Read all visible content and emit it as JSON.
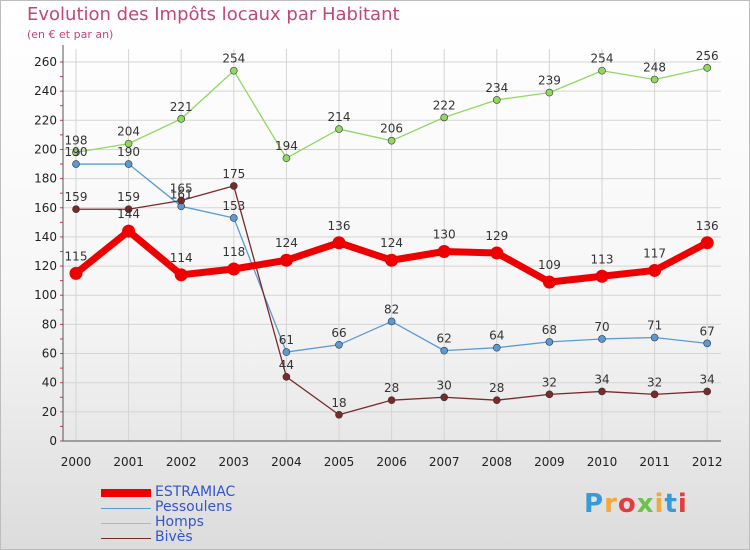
{
  "title": "Evolution des Impôts locaux par Habitant",
  "subtitle": "(en € et par an)",
  "logo": "Proxiti",
  "chart_data": {
    "type": "line",
    "x": [
      "2000",
      "2001",
      "2002",
      "2003",
      "2004",
      "2005",
      "2006",
      "2007",
      "2008",
      "2009",
      "2010",
      "2011",
      "2012"
    ],
    "ylim": [
      0,
      260
    ],
    "yticks": [
      0,
      20,
      40,
      60,
      80,
      100,
      120,
      140,
      160,
      180,
      200,
      220,
      240,
      260
    ],
    "grid": true,
    "legend_position": "bottom-left",
    "series": [
      {
        "name": "ESTRAMIAC",
        "color": "#ee0000",
        "values": [
          115,
          144,
          114,
          118,
          124,
          136,
          124,
          130,
          129,
          109,
          113,
          117,
          136
        ]
      },
      {
        "name": "Pessoulens",
        "color": "#5b9bd5",
        "values": [
          190,
          190,
          161,
          153,
          61,
          66,
          82,
          62,
          64,
          68,
          70,
          71,
          67
        ]
      },
      {
        "name": "Homps",
        "color": "#90d860",
        "values": [
          198,
          204,
          221,
          254,
          194,
          214,
          206,
          222,
          234,
          239,
          254,
          248,
          256
        ]
      },
      {
        "name": "Bivès",
        "color": "#7a2a2a",
        "values": [
          159,
          159,
          165,
          175,
          44,
          18,
          28,
          30,
          28,
          32,
          34,
          32,
          34
        ]
      }
    ]
  }
}
